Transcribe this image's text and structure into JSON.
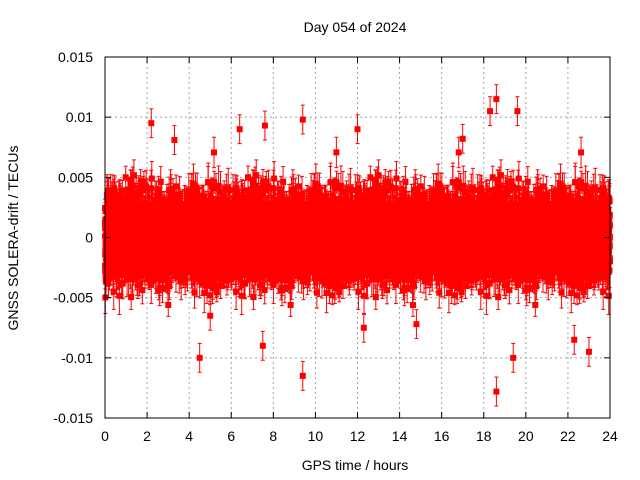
{
  "chart_data": {
    "type": "scatter",
    "title": "Day 054 of 2024",
    "xlabel": "GPS time / hours",
    "ylabel": "GNSS SOLERA-drift / TECUs",
    "xlim": [
      0,
      24
    ],
    "ylim": [
      -0.015,
      0.015
    ],
    "x_ticks": [
      0,
      2,
      4,
      6,
      8,
      10,
      12,
      14,
      16,
      18,
      20,
      22,
      24
    ],
    "x_tick_labels": [
      "0",
      "2",
      "4",
      "6",
      "8",
      "10",
      "12",
      "14",
      "16",
      "18",
      "20",
      "22",
      "24"
    ],
    "y_ticks": [
      -0.015,
      -0.01,
      -0.005,
      0,
      0.005,
      0.01,
      0.015
    ],
    "y_tick_labels": [
      "-0.015",
      "-0.01",
      "-0.005",
      "0",
      "0.005",
      "0.01",
      "0.015"
    ],
    "grid": true,
    "legend": "none",
    "marker": "square",
    "error_bars": true,
    "series_color": "#ff0000",
    "sampling_interval_hours": 0.00833,
    "typical_spread": 0.003,
    "typical_error_bar": 0.0012,
    "notable_points": [
      {
        "x": 2.2,
        "y": 0.0095
      },
      {
        "x": 3.3,
        "y": 0.0081
      },
      {
        "x": 4.5,
        "y": -0.01
      },
      {
        "x": 6.4,
        "y": 0.009
      },
      {
        "x": 7.6,
        "y": 0.0093
      },
      {
        "x": 7.5,
        "y": -0.009
      },
      {
        "x": 9.4,
        "y": -0.0115
      },
      {
        "x": 9.4,
        "y": 0.0098
      },
      {
        "x": 12.0,
        "y": 0.009
      },
      {
        "x": 18.3,
        "y": 0.0105
      },
      {
        "x": 18.6,
        "y": 0.0115
      },
      {
        "x": 18.6,
        "y": -0.0128
      },
      {
        "x": 19.6,
        "y": 0.0105
      },
      {
        "x": 22.3,
        "y": -0.0085
      },
      {
        "x": 23.0,
        "y": -0.0095
      },
      {
        "x": 12.3,
        "y": -0.0075
      },
      {
        "x": 17.0,
        "y": 0.0082
      },
      {
        "x": 19.4,
        "y": -0.01
      },
      {
        "x": 5.0,
        "y": -0.0065
      },
      {
        "x": 14.8,
        "y": -0.0072
      }
    ]
  }
}
